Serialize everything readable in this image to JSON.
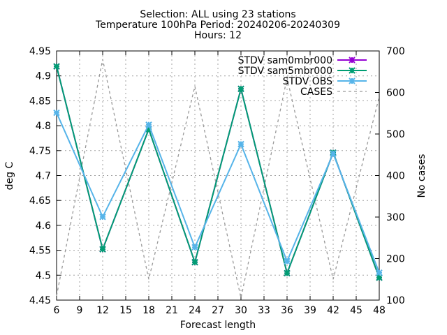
{
  "chart_data": {
    "type": "line",
    "title_lines": [
      "Selection: ALL using    23 stations",
      "Temperature 100hPa   Period: 20240206-20240309",
      "Hours: 12"
    ],
    "xlabel": "Forecast length",
    "ylabel": "deg C",
    "y2label": "No cases",
    "x_ticks": [
      6,
      9,
      12,
      15,
      18,
      21,
      24,
      27,
      30,
      33,
      36,
      39,
      42,
      45,
      48
    ],
    "xlim": [
      6,
      48
    ],
    "ylim": [
      4.45,
      4.95
    ],
    "y_ticks": [
      4.45,
      4.5,
      4.55,
      4.6,
      4.65,
      4.7,
      4.75,
      4.8,
      4.85,
      4.9,
      4.95
    ],
    "y2lim": [
      100,
      700
    ],
    "y2_ticks": [
      100,
      200,
      300,
      400,
      500,
      600,
      700
    ],
    "grid": true,
    "legend_position": "top-right",
    "x": [
      6,
      12,
      18,
      24,
      30,
      36,
      42,
      48
    ],
    "series": [
      {
        "name": "STDV sam0mbr000",
        "color": "#9400d3",
        "axis": "y",
        "style": "line-points",
        "values": [
          4.919,
          4.552,
          4.793,
          4.526,
          4.874,
          4.504,
          4.746,
          4.495
        ]
      },
      {
        "name": "STDV sam5mbr000",
        "color": "#009e73",
        "axis": "y",
        "style": "line-points",
        "values": [
          4.919,
          4.552,
          4.793,
          4.526,
          4.874,
          4.504,
          4.746,
          4.495
        ]
      },
      {
        "name": "STDV OBS",
        "color": "#56b4e9",
        "axis": "y",
        "style": "line-points",
        "values": [
          4.826,
          4.617,
          4.802,
          4.556,
          4.763,
          4.528,
          4.744,
          4.505
        ]
      },
      {
        "name": "CASES",
        "color": "#999999",
        "axis": "y2",
        "style": "dashed",
        "values": [
          110,
          680,
          150,
          615,
          105,
          635,
          150,
          590
        ]
      }
    ]
  }
}
